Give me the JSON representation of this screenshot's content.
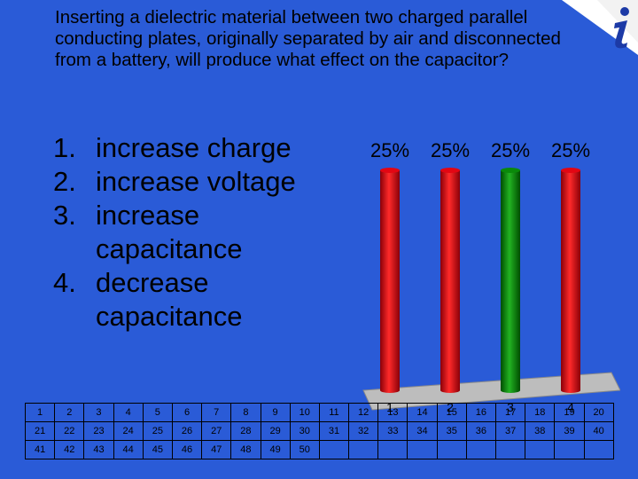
{
  "question": "Inserting a dielectric material between two charged parallel conducting plates, originally separated by air and disconnected from a battery, will produce what effect on the capacitor?",
  "answers": [
    {
      "num": "1.",
      "text": "increase charge"
    },
    {
      "num": "2.",
      "text": "increase voltage"
    },
    {
      "num": "3.",
      "text": "increase capacitance"
    },
    {
      "num": "4.",
      "text": "decrease capacitance"
    }
  ],
  "chart_data": {
    "type": "bar",
    "categories": [
      "1",
      "2",
      "3",
      "4"
    ],
    "values": [
      25,
      25,
      25,
      25
    ],
    "data_labels": [
      "25%",
      "25%",
      "25%",
      "25%"
    ],
    "ylim": [
      0,
      25
    ],
    "colors": [
      "#e30613",
      "#e30613",
      "#0a8a0a",
      "#e30613"
    ]
  },
  "grid": {
    "rows": [
      [
        "1",
        "2",
        "3",
        "4",
        "5",
        "6",
        "7",
        "8",
        "9",
        "10",
        "11",
        "12",
        "13",
        "14",
        "15",
        "16",
        "17",
        "18",
        "19",
        "20"
      ],
      [
        "21",
        "22",
        "23",
        "24",
        "25",
        "26",
        "27",
        "28",
        "29",
        "30",
        "31",
        "32",
        "33",
        "34",
        "35",
        "36",
        "37",
        "38",
        "39",
        "40"
      ],
      [
        "41",
        "42",
        "43",
        "44",
        "45",
        "46",
        "47",
        "48",
        "49",
        "50",
        "",
        "",
        "",
        "",
        "",
        "",
        "",
        "",
        "",
        ""
      ]
    ]
  },
  "logo_icon": "i-logo-icon"
}
